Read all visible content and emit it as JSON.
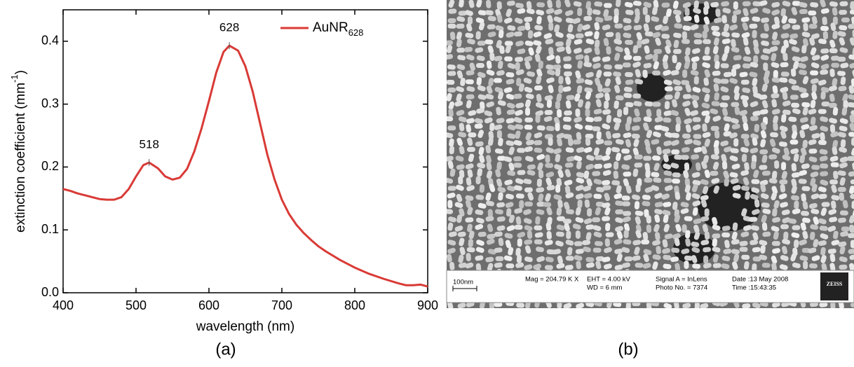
{
  "chart_data": {
    "type": "line",
    "xlabel": "wavelength (nm)",
    "ylabel": "extinction coefficient (mm",
    "ylabel_sup": "-1",
    "ylabel_end": ")",
    "panel_label": "(a)",
    "xlim": [
      400,
      900
    ],
    "xticks": [
      400,
      500,
      600,
      700,
      800,
      900
    ],
    "ylim": [
      0,
      0.45
    ],
    "yticks": [
      {
        "value": 0,
        "label": "0.0"
      },
      0.1,
      0.2,
      0.3,
      0.4
    ],
    "legend": "upper right",
    "x": [
      400,
      410,
      420,
      430,
      440,
      450,
      460,
      470,
      480,
      490,
      500,
      510,
      518,
      530,
      540,
      550,
      560,
      570,
      580,
      590,
      600,
      610,
      620,
      628,
      640,
      650,
      660,
      670,
      680,
      690,
      700,
      710,
      720,
      730,
      740,
      750,
      760,
      780,
      800,
      820,
      840,
      860,
      870,
      880,
      890,
      900
    ],
    "series": [
      {
        "name": "AuNR",
        "name_sub": "628",
        "color": "#d93a36",
        "values": [
          0.165,
          0.162,
          0.158,
          0.155,
          0.152,
          0.149,
          0.148,
          0.148,
          0.152,
          0.165,
          0.185,
          0.203,
          0.207,
          0.198,
          0.185,
          0.18,
          0.183,
          0.197,
          0.225,
          0.262,
          0.305,
          0.35,
          0.383,
          0.393,
          0.385,
          0.36,
          0.32,
          0.27,
          0.22,
          0.18,
          0.148,
          0.125,
          0.108,
          0.095,
          0.084,
          0.074,
          0.066,
          0.052,
          0.04,
          0.03,
          0.022,
          0.015,
          0.012,
          0.012,
          0.013,
          0.01
        ]
      }
    ],
    "annotations": [
      {
        "text": "518",
        "x": 518,
        "y": 0.207
      },
      {
        "text": "628",
        "x": 628,
        "y": 0.393
      }
    ]
  },
  "panel_b": {
    "panel_label": "(b)",
    "scale_bar": "100nm",
    "info": {
      "mag": "Mag = 204.79 K X",
      "eht": "EHT =  4.00 kV",
      "wd": "WD =    6 mm",
      "signal": "Signal A = InLens",
      "photo": "Photo No. = 7374",
      "date": "Date :13 May 2008",
      "time": "Time :15:43:35",
      "brand": "ZEISS"
    }
  }
}
